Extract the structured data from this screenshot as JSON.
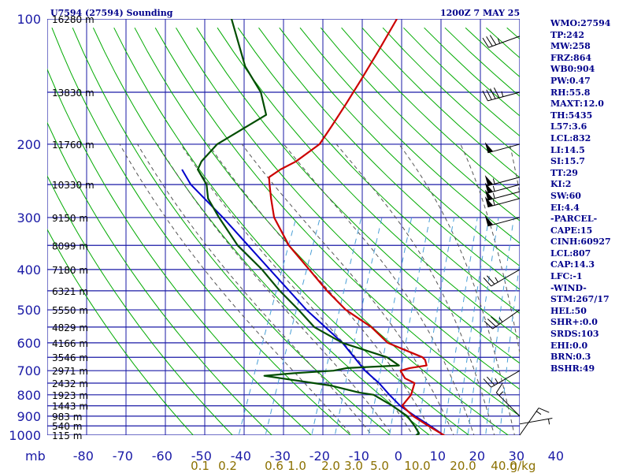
{
  "header": {
    "title": "U7594 (27594) Sounding",
    "time": "1200Z  7 MAY 25"
  },
  "indices": [
    "WMO:27594",
    "TP:242",
    "MW:258",
    "FRZ:864",
    "WB0:904",
    "PW:0.47",
    "RH:55.8",
    "MAXT:12.0",
    "TH:5435",
    "L57:3.6",
    "LCL:832",
    "LI:14.5",
    "SI:15.7",
    "TT:29",
    "KI:2",
    "SW:60",
    "EI:4.4",
    "-PARCEL-",
    "CAPE:15",
    "CINH:60927",
    "LCL:807",
    "CAP:14.3",
    "LFC:-1",
    "-WIND-",
    "STM:267/17",
    "HEL:50",
    "SHR+:0.0",
    "SRDS:103",
    "EHI:0.0",
    "BRN:0.3",
    "BSHR:49"
  ],
  "colors": {
    "grid": "#1a1aa6",
    "temperature": "#cc0000",
    "dewpoint": "#004d00",
    "parcel": "#0000cc",
    "dry_adiabat": "#00aa00",
    "moist_adiabat": "#555555",
    "mixing_ratio": "#4a9fd6",
    "wind": "#000000",
    "mixing_label": "#8b7000"
  },
  "chart_data": {
    "type": "skew-t",
    "pressure_unit": "mb",
    "pressure_levels": [
      100,
      200,
      300,
      400,
      500,
      600,
      700,
      800,
      900,
      1000
    ],
    "temperature_ticks": [
      -80,
      -70,
      -60,
      -50,
      -40,
      -30,
      -20,
      -10,
      0,
      10,
      20,
      30,
      40
    ],
    "mixing_ratio_labels": [
      "0.1",
      "0.2",
      "0.6",
      "1.0",
      "2.0",
      "3.0",
      "5.0",
      "10.0",
      "20.0",
      "40.0",
      "g/kg"
    ],
    "heights": [
      {
        "p": 100,
        "label": "16280 m"
      },
      {
        "p": 150,
        "label": "13830 m"
      },
      {
        "p": 200,
        "label": "11760 m"
      },
      {
        "p": 250,
        "label": "10330 m"
      },
      {
        "p": 300,
        "label": "9150 m"
      },
      {
        "p": 350,
        "label": "8099 m"
      },
      {
        "p": 400,
        "label": "7180 m"
      },
      {
        "p": 450,
        "label": "6321 m"
      },
      {
        "p": 500,
        "label": "5550 m"
      },
      {
        "p": 550,
        "label": "4829 m"
      },
      {
        "p": 600,
        "label": "4166 m"
      },
      {
        "p": 650,
        "label": "3546 m"
      },
      {
        "p": 700,
        "label": "2971 m"
      },
      {
        "p": 750,
        "label": "2432 m"
      },
      {
        "p": 800,
        "label": "1923 m"
      },
      {
        "p": 850,
        "label": "1443 m"
      },
      {
        "p": 900,
        "label": "983 m"
      },
      {
        "p": 950,
        "label": "540 m"
      },
      {
        "p": 1000,
        "label": "115 m"
      }
    ],
    "temperature": [
      [
        1010,
        11.5
      ],
      [
        1000,
        10.5
      ],
      [
        950,
        5.5
      ],
      [
        900,
        0.5
      ],
      [
        850,
        -3.5
      ],
      [
        800,
        -2.5
      ],
      [
        750,
        -3
      ],
      [
        730,
        -6
      ],
      [
        700,
        -8
      ],
      [
        690,
        -6
      ],
      [
        680,
        -2
      ],
      [
        660,
        -3
      ],
      [
        650,
        -4
      ],
      [
        600,
        -14.5
      ],
      [
        550,
        -20.5
      ],
      [
        500,
        -29
      ],
      [
        450,
        -36
      ],
      [
        400,
        -43
      ],
      [
        350,
        -51
      ],
      [
        300,
        -58
      ],
      [
        270,
        -61
      ],
      [
        250,
        -63
      ],
      [
        240,
        -64
      ],
      [
        230,
        -62
      ],
      [
        220,
        -59
      ],
      [
        200,
        -55
      ],
      [
        180,
        -54
      ],
      [
        160,
        -53
      ],
      [
        140,
        -52
      ],
      [
        120,
        -51
      ],
      [
        100,
        -50
      ]
    ],
    "dewpoint": [
      [
        1010,
        6
      ],
      [
        1000,
        3.5
      ],
      [
        990,
        4
      ],
      [
        950,
        2
      ],
      [
        900,
        -1
      ],
      [
        850,
        -6
      ],
      [
        800,
        -12
      ],
      [
        790,
        -16
      ],
      [
        760,
        -24
      ],
      [
        720,
        -42
      ],
      [
        710,
        -35
      ],
      [
        700,
        -25
      ],
      [
        690,
        -22
      ],
      [
        680,
        -9
      ],
      [
        650,
        -13
      ],
      [
        600,
        -26
      ],
      [
        550,
        -35
      ],
      [
        500,
        -41
      ],
      [
        450,
        -48
      ],
      [
        400,
        -55
      ],
      [
        350,
        -64
      ],
      [
        300,
        -72
      ],
      [
        270,
        -77
      ],
      [
        250,
        -79
      ],
      [
        230,
        -83
      ],
      [
        220,
        -83
      ],
      [
        200,
        -81
      ],
      [
        170,
        -72
      ],
      [
        150,
        -76
      ],
      [
        130,
        -83
      ],
      [
        100,
        -92
      ]
    ],
    "parcel": [
      [
        1010,
        11.5
      ],
      [
        1000,
        10.5
      ],
      [
        950,
        6
      ],
      [
        900,
        1
      ],
      [
        860,
        -3
      ],
      [
        850,
        -4
      ],
      [
        800,
        -8
      ],
      [
        750,
        -12
      ],
      [
        700,
        -17
      ],
      [
        600,
        -26
      ],
      [
        500,
        -39
      ],
      [
        400,
        -53
      ],
      [
        300,
        -71
      ],
      [
        250,
        -83
      ],
      [
        230,
        -87
      ]
    ],
    "wind_barbs": [
      {
        "p": 110,
        "dir": 250,
        "kt": 35
      },
      {
        "p": 150,
        "dir": 255,
        "kt": 45
      },
      {
        "p": 200,
        "dir": 255,
        "kt": 50
      },
      {
        "p": 240,
        "dir": 255,
        "kt": 55
      },
      {
        "p": 250,
        "dir": 255,
        "kt": 55
      },
      {
        "p": 260,
        "dir": 255,
        "kt": 55
      },
      {
        "p": 270,
        "dir": 255,
        "kt": 55
      },
      {
        "p": 300,
        "dir": 255,
        "kt": 50
      },
      {
        "p": 400,
        "dir": 240,
        "kt": 25
      },
      {
        "p": 500,
        "dir": 235,
        "kt": 35
      },
      {
        "p": 700,
        "dir": 240,
        "kt": 25
      },
      {
        "p": 900,
        "dir": 315,
        "kt": 15
      },
      {
        "p": 940,
        "dir": 80,
        "kt": 5
      },
      {
        "p": 1000,
        "dir": 35,
        "kt": 15
      }
    ]
  }
}
